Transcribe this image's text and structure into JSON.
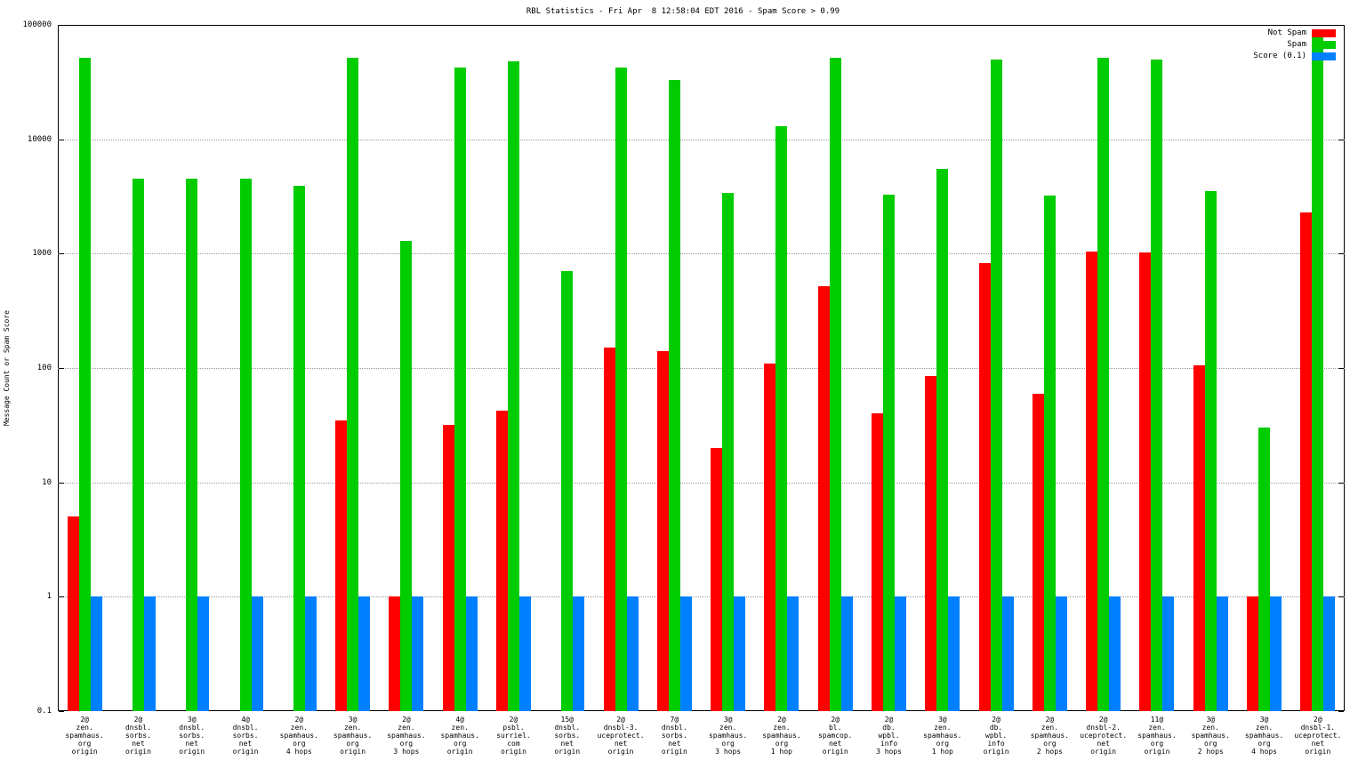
{
  "chart_data": {
    "type": "bar",
    "title": "RBL Statistics - Fri Apr  8 12:58:04 EDT 2016 - Spam Score > 0.99",
    "ylabel": "Message Count or Spam Score",
    "yscale": "log",
    "ylim": [
      0.1,
      100000
    ],
    "ytick_labels": [
      "0.1",
      "1",
      "10",
      "100",
      "1000",
      "10000",
      "100000"
    ],
    "grid": true,
    "legend_position": "top-right",
    "background": "#ffffff",
    "categories": [
      [
        "2@",
        "zen.",
        "spamhaus.",
        "org",
        "origin"
      ],
      [
        "2@",
        "dnsbl.",
        "sorbs.",
        "net",
        "origin"
      ],
      [
        "3@",
        "dnsbl.",
        "sorbs.",
        "net",
        "origin"
      ],
      [
        "4@",
        "dnsbl.",
        "sorbs.",
        "net",
        "origin"
      ],
      [
        "2@",
        "zen.",
        "spamhaus.",
        "org",
        "4 hops"
      ],
      [
        "3@",
        "zen.",
        "spamhaus.",
        "org",
        "origin"
      ],
      [
        "2@",
        "zen.",
        "spamhaus.",
        "org",
        "3 hops"
      ],
      [
        "4@",
        "zen.",
        "spamhaus.",
        "org",
        "origin"
      ],
      [
        "2@",
        "psbl.",
        "surriel.",
        "com",
        "origin"
      ],
      [
        "15@",
        "dnsbl.",
        "sorbs.",
        "net",
        "origin"
      ],
      [
        "2@",
        "dnsbl-3.",
        "uceprotect.",
        "net",
        "origin"
      ],
      [
        "7@",
        "dnsbl.",
        "sorbs.",
        "net",
        "origin"
      ],
      [
        "3@",
        "zen.",
        "spamhaus.",
        "org",
        "3 hops"
      ],
      [
        "2@",
        "zen.",
        "spamhaus.",
        "org",
        "1 hop"
      ],
      [
        "2@",
        "bl.",
        "spamcop.",
        "net",
        "origin"
      ],
      [
        "2@",
        "db.",
        "wpbl.",
        "info",
        "3 hops"
      ],
      [
        "3@",
        "zen.",
        "spamhaus.",
        "org",
        "1 hop"
      ],
      [
        "2@",
        "db.",
        "wpbl.",
        "info",
        "origin"
      ],
      [
        "2@",
        "zen.",
        "spamhaus.",
        "org",
        "2 hops"
      ],
      [
        "2@",
        "dnsbl-2.",
        "uceprotect.",
        "net",
        "origin"
      ],
      [
        "11@",
        "zen.",
        "spamhaus.",
        "org",
        "origin"
      ],
      [
        "3@",
        "zen.",
        "spamhaus.",
        "org",
        "2 hops"
      ],
      [
        "3@",
        "zen.",
        "spamhaus.",
        "org",
        "4 hops"
      ],
      [
        "2@",
        "dnsbl-1.",
        "uceprotect.",
        "net",
        "origin"
      ]
    ],
    "series": [
      {
        "name": "Not Spam",
        "color": "#ff0000",
        "values": [
          5,
          null,
          null,
          null,
          null,
          35,
          1,
          32,
          42,
          null,
          150,
          140,
          20,
          110,
          520,
          40,
          85,
          830,
          60,
          1050,
          1030,
          105,
          1,
          2300
        ]
      },
      {
        "name": "Spam",
        "color": "#00cc00",
        "values": [
          52000,
          4500,
          4500,
          4500,
          3900,
          52000,
          1300,
          42000,
          48000,
          700,
          42000,
          33000,
          3400,
          13000,
          52000,
          3300,
          5500,
          50000,
          3200,
          52000,
          50000,
          3500,
          30,
          90000
        ]
      },
      {
        "name": "Score (0.1)",
        "color": "#0080ff",
        "values": [
          1,
          1,
          1,
          1,
          1,
          1,
          1,
          1,
          1,
          1,
          1,
          1,
          1,
          1,
          1,
          1,
          1,
          1,
          1,
          1,
          1,
          1,
          1,
          1
        ]
      }
    ]
  }
}
